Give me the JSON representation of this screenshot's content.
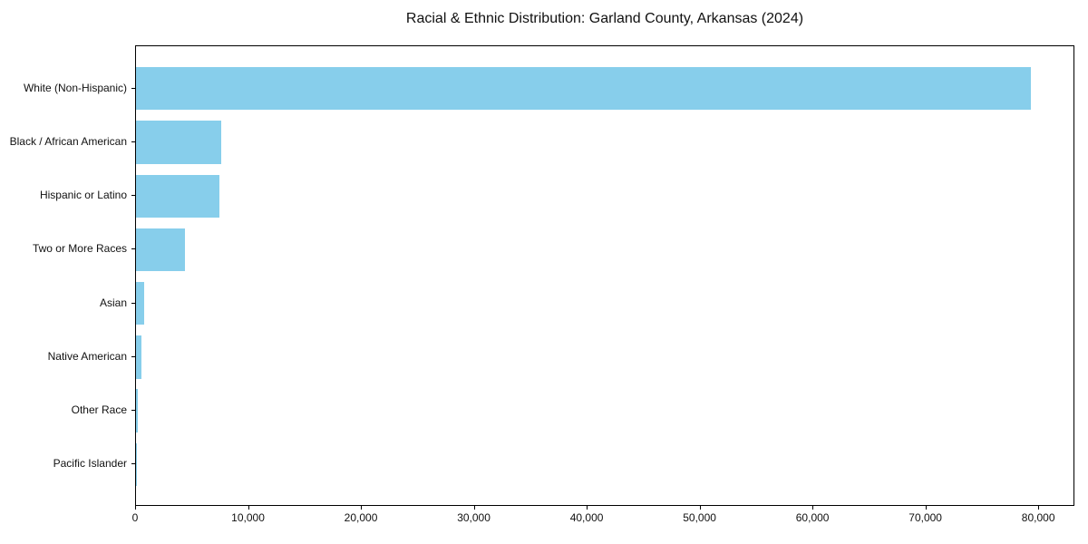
{
  "chart_data": {
    "type": "bar",
    "orientation": "horizontal",
    "title": "Racial & Ethnic Distribution: Garland County, Arkansas (2024)",
    "categories": [
      "White (Non-Hispanic)",
      "Black / African American",
      "Hispanic or Latino",
      "Two or More Races",
      "Asian",
      "Native American",
      "Other Race",
      "Pacific Islander"
    ],
    "values": [
      79250,
      7550,
      7400,
      4330,
      700,
      450,
      130,
      70
    ],
    "bar_color": "#87CEEB",
    "axis_color": "#000000",
    "background_color": "#ffffff",
    "xlabel": "",
    "ylabel": "",
    "xlim": [
      0,
      83200
    ],
    "x_ticks": [
      {
        "value": 0,
        "label": "0"
      },
      {
        "value": 10000,
        "label": "10,000"
      },
      {
        "value": 20000,
        "label": "20,000"
      },
      {
        "value": 30000,
        "label": "30,000"
      },
      {
        "value": 40000,
        "label": "40,000"
      },
      {
        "value": 50000,
        "label": "50,000"
      },
      {
        "value": 60000,
        "label": "60,000"
      },
      {
        "value": 70000,
        "label": "70,000"
      },
      {
        "value": 80000,
        "label": "80,000"
      }
    ],
    "grid": false,
    "legend": "none"
  }
}
